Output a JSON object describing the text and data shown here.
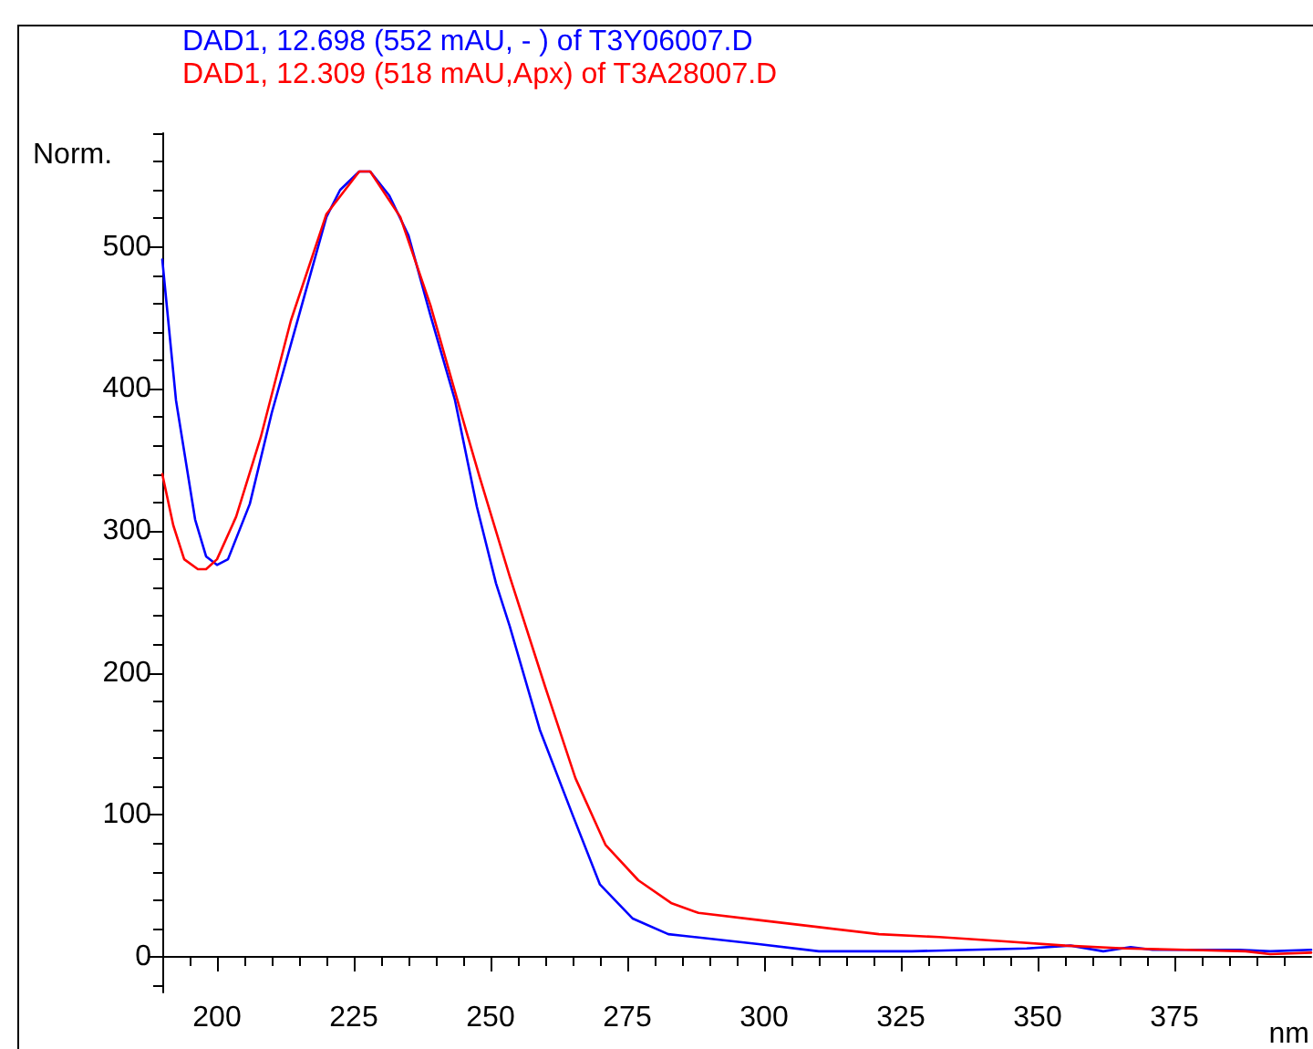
{
  "chart_data": {
    "type": "line",
    "ylabel": "Norm.",
    "xlabel": "nm",
    "xlim": [
      190,
      400
    ],
    "ylim": [
      -25,
      580
    ],
    "xticks": [
      {
        "value": 195,
        "label": null
      },
      200,
      {
        "value": 205,
        "label": null
      },
      {
        "value": 210,
        "label": null
      },
      {
        "value": 215,
        "label": null
      },
      {
        "value": 220,
        "label": null
      },
      225,
      {
        "value": 230,
        "label": null
      },
      {
        "value": 235,
        "label": null
      },
      {
        "value": 240,
        "label": null
      },
      {
        "value": 245,
        "label": null
      },
      250,
      {
        "value": 255,
        "label": null
      },
      {
        "value": 260,
        "label": null
      },
      {
        "value": 265,
        "label": null
      },
      {
        "value": 270,
        "label": null
      },
      275,
      {
        "value": 280,
        "label": null
      },
      {
        "value": 285,
        "label": null
      },
      {
        "value": 290,
        "label": null
      },
      {
        "value": 295,
        "label": null
      },
      300,
      {
        "value": 305,
        "label": null
      },
      {
        "value": 310,
        "label": null
      },
      {
        "value": 315,
        "label": null
      },
      {
        "value": 320,
        "label": null
      },
      325,
      {
        "value": 330,
        "label": null
      },
      {
        "value": 335,
        "label": null
      },
      {
        "value": 340,
        "label": null
      },
      {
        "value": 345,
        "label": null
      },
      350,
      {
        "value": 355,
        "label": null
      },
      {
        "value": 360,
        "label": null
      },
      {
        "value": 365,
        "label": null
      },
      {
        "value": 370,
        "label": null
      },
      375,
      {
        "value": 380,
        "label": null
      },
      {
        "value": 385,
        "label": null
      },
      {
        "value": 390,
        "label": null
      },
      {
        "value": 395,
        "label": null
      }
    ],
    "yticks": [
      {
        "value": -20,
        "label": null
      },
      0,
      {
        "value": 20,
        "label": null
      },
      {
        "value": 40,
        "label": null
      },
      {
        "value": 60,
        "label": null
      },
      {
        "value": 80,
        "label": null
      },
      100,
      {
        "value": 120,
        "label": null
      },
      {
        "value": 140,
        "label": null
      },
      {
        "value": 160,
        "label": null
      },
      {
        "value": 180,
        "label": null
      },
      200,
      {
        "value": 220,
        "label": null
      },
      {
        "value": 240,
        "label": null
      },
      {
        "value": 260,
        "label": null
      },
      {
        "value": 280,
        "label": null
      },
      300,
      {
        "value": 320,
        "label": null
      },
      {
        "value": 340,
        "label": null
      },
      {
        "value": 360,
        "label": null
      },
      {
        "value": 380,
        "label": null
      },
      400,
      {
        "value": 420,
        "label": null
      },
      {
        "value": 440,
        "label": null
      },
      {
        "value": 460,
        "label": null
      },
      {
        "value": 480,
        "label": null
      },
      500,
      {
        "value": 520,
        "label": null
      },
      {
        "value": 540,
        "label": null
      },
      {
        "value": 560,
        "label": null
      },
      {
        "value": 580,
        "label": null
      }
    ],
    "grid": false,
    "legend": "top left",
    "marker": "none",
    "line_style": "solid",
    "series": [
      {
        "name": "DAD1, 12.698 (552 mAU, - ) of T3Y06007.D",
        "color": "#0000ff",
        "x": [
          190,
          192.5,
          196,
          198,
          200,
          202,
          206,
          210,
          215,
          220,
          222.5,
          226,
          228,
          231.5,
          235,
          239,
          243.5,
          247.5,
          251,
          253.5,
          259,
          265,
          270,
          276,
          282.5,
          285,
          299,
          310,
          327,
          348,
          356,
          362,
          367,
          371,
          387,
          392.5,
          400
        ],
        "values": [
          491,
          392,
          308,
          282,
          276,
          280,
          319,
          383,
          452,
          521,
          540,
          553,
          553,
          536,
          508,
          452,
          392,
          317,
          263,
          233,
          160,
          100,
          51,
          27,
          16,
          15,
          9,
          4,
          4,
          6,
          8,
          4,
          7,
          5,
          5,
          4,
          5
        ]
      },
      {
        "name": "DAD1, 12.309 (518 mAU,Apx) of T3A28007.D",
        "color": "#ff0000",
        "x": [
          190,
          192,
          194,
          196.5,
          198,
          200,
          203.5,
          208,
          213.5,
          220,
          226,
          228,
          233.5,
          239,
          245.5,
          248,
          253.5,
          260,
          265.5,
          271,
          277,
          283,
          288,
          299,
          310,
          321,
          332,
          344,
          355,
          366,
          377,
          388,
          392.5,
          400
        ],
        "values": [
          340,
          304,
          280,
          273,
          273,
          280,
          310,
          366,
          448,
          523,
          553,
          553,
          521,
          459,
          371,
          338,
          268,
          190,
          126,
          79,
          54,
          38,
          31,
          26,
          21,
          16,
          14,
          11,
          8,
          6,
          5,
          4,
          2,
          3
        ]
      }
    ]
  }
}
